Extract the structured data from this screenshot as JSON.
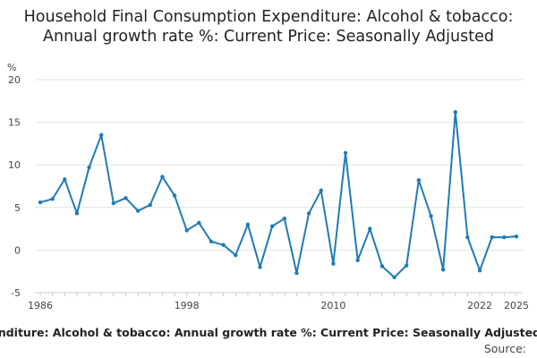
{
  "chart_data": {
    "type": "line",
    "title": "Household Final Consumption Expenditure: Alcohol & tobacco: Annual growth rate %: Current Price: Seasonally Adjusted",
    "ylabel": "%",
    "xlabel": "",
    "footer": "Household Final Consumption Expenditure: Alcohol & tobacco: Annual growth rate %: Current Price: Seasonally Adjusted",
    "source": "Source:",
    "ylim": [
      -5,
      20
    ],
    "xlim": [
      1986,
      2025
    ],
    "grid": true,
    "legend": "none",
    "color": "#1f7bb6",
    "y_ticks": [
      -5,
      0,
      5,
      10,
      15,
      20
    ],
    "x_ticks": [
      1986,
      1998,
      2010,
      2022,
      2025
    ],
    "x": [
      1986,
      1987,
      1988,
      1989,
      1990,
      1991,
      1992,
      1993,
      1994,
      1995,
      1996,
      1997,
      1998,
      1999,
      2000,
      2001,
      2002,
      2003,
      2004,
      2005,
      2006,
      2007,
      2008,
      2009,
      2010,
      2011,
      2012,
      2013,
      2014,
      2015,
      2016,
      2017,
      2018,
      2019,
      2020,
      2021,
      2022,
      2023,
      2024,
      2025
    ],
    "values": [
      5.6,
      6.0,
      8.3,
      4.3,
      9.7,
      13.5,
      5.5,
      6.1,
      4.6,
      5.3,
      8.6,
      6.4,
      2.3,
      3.2,
      1.0,
      0.6,
      -0.6,
      3.0,
      -2.0,
      2.8,
      3.7,
      -2.7,
      4.3,
      7.0,
      -1.6,
      11.4,
      -1.2,
      2.5,
      -1.9,
      -3.2,
      -1.8,
      8.2,
      4.0,
      -2.3,
      16.2,
      1.5,
      -2.4,
      1.5,
      1.5,
      1.6
    ]
  }
}
